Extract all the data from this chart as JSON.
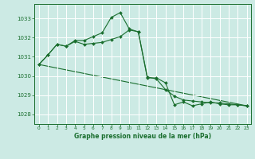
{
  "title": "Graphe pression niveau de la mer (hPa)",
  "background_color": "#cceae4",
  "grid_color": "#ffffff",
  "line_color": "#1a6e2e",
  "marker_color": "#1a6e2e",
  "xlim": [
    -0.5,
    23.5
  ],
  "ylim": [
    1027.5,
    1033.75
  ],
  "yticks": [
    1028,
    1029,
    1030,
    1031,
    1032,
    1033
  ],
  "xticks": [
    0,
    1,
    2,
    3,
    4,
    5,
    6,
    7,
    8,
    9,
    10,
    11,
    12,
    13,
    14,
    15,
    16,
    17,
    18,
    19,
    20,
    21,
    22,
    23
  ],
  "series1_x": [
    0,
    1,
    2,
    3,
    4,
    5,
    6,
    7,
    8,
    9,
    10,
    11,
    12,
    13,
    14,
    15,
    16,
    17,
    18,
    19,
    20,
    21,
    22,
    23
  ],
  "series1_y": [
    1030.6,
    1031.1,
    1031.65,
    1031.55,
    1031.85,
    1031.85,
    1032.05,
    1032.25,
    1033.05,
    1033.3,
    1032.45,
    1032.3,
    1029.9,
    1029.9,
    1029.65,
    1028.5,
    1028.65,
    1028.45,
    1028.55,
    1028.65,
    1028.55,
    1028.5,
    1028.5,
    1028.45
  ],
  "series2_x": [
    0,
    1,
    2,
    3,
    4,
    5,
    6,
    7,
    8,
    9,
    10,
    11,
    12,
    13,
    14,
    15,
    16,
    17,
    18,
    19,
    20,
    21,
    22,
    23
  ],
  "series2_y": [
    1030.6,
    1031.1,
    1031.65,
    1031.55,
    1031.8,
    1031.65,
    1031.7,
    1031.75,
    1031.9,
    1032.05,
    1032.4,
    1032.3,
    1029.95,
    1029.85,
    1029.3,
    1028.95,
    1028.75,
    1028.7,
    1028.65,
    1028.6,
    1028.6,
    1028.55,
    1028.5,
    1028.45
  ],
  "series3_x": [
    0,
    23
  ],
  "series3_y": [
    1030.6,
    1028.45
  ]
}
